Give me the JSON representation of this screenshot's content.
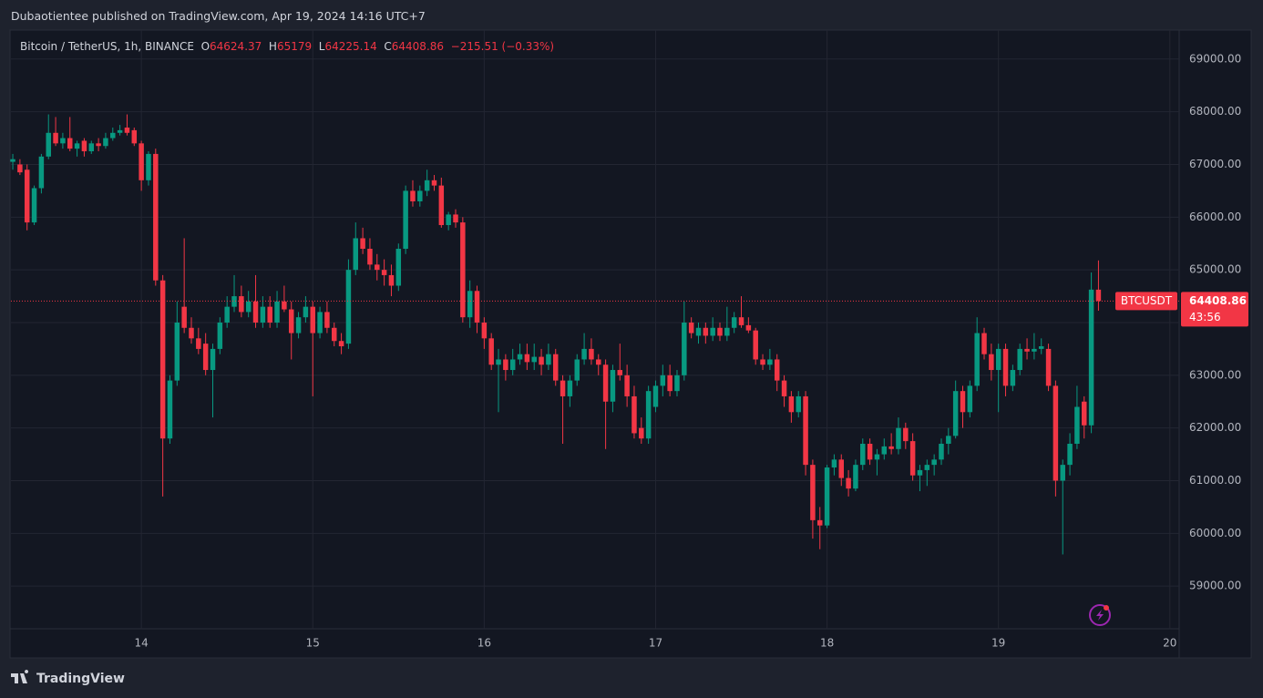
{
  "chart_data": {
    "type": "candlestick",
    "publisher": "Dubaotientee published on TradingView.com, Apr 19, 2024 14:16 UTC+7",
    "title": "Bitcoin / TetherUS, 1h, BINANCE",
    "ohlc_labels": [
      "O",
      "H",
      "L",
      "C"
    ],
    "change_text": "−215.51 (−0.33%)",
    "price_label": "BTCUSDT",
    "countdown": "43:56",
    "brand": "TradingView",
    "up_color": "#089981",
    "down_color": "#f23645",
    "grid": true,
    "ylim": [
      58190,
      69550
    ],
    "yticks": [
      {
        "value": 59000,
        "label": "59000.00"
      },
      {
        "value": 60000,
        "label": "60000.00"
      },
      {
        "value": 61000,
        "label": "61000.00"
      },
      {
        "value": 62000,
        "label": "62000.00"
      },
      {
        "value": 63000,
        "label": "63000.00"
      },
      {
        "value": 64000,
        "label": "64000.00"
      },
      {
        "value": 65000,
        "label": "65000.00"
      },
      {
        "value": 66000,
        "label": "66000.00"
      },
      {
        "value": 67000,
        "label": "67000.00"
      },
      {
        "value": 68000,
        "label": "68000.00"
      },
      {
        "value": 69000,
        "label": "69000.00"
      }
    ],
    "xlim": [
      -0.26,
      163.3
    ],
    "xticks": [
      {
        "value": 18,
        "label": "14"
      },
      {
        "value": 42,
        "label": "15"
      },
      {
        "value": 66,
        "label": "16"
      },
      {
        "value": 90,
        "label": "17"
      },
      {
        "value": 114,
        "label": "18"
      },
      {
        "value": 138,
        "label": "19"
      },
      {
        "value": 162,
        "label": "20"
      }
    ],
    "candles": [
      [
        67050,
        67200,
        66900,
        67100
      ],
      [
        67000,
        67100,
        66800,
        66850
      ],
      [
        66900,
        67000,
        65750,
        65900
      ],
      [
        65900,
        66600,
        65850,
        66550
      ],
      [
        66550,
        67200,
        66450,
        67150
      ],
      [
        67150,
        67950,
        67100,
        67600
      ],
      [
        67600,
        67900,
        67350,
        67400
      ],
      [
        67400,
        67600,
        67300,
        67500
      ],
      [
        67500,
        67900,
        67250,
        67300
      ],
      [
        67300,
        67450,
        67150,
        67400
      ],
      [
        67450,
        67500,
        67150,
        67250
      ],
      [
        67250,
        67450,
        67200,
        67400
      ],
      [
        67400,
        67500,
        67250,
        67350
      ],
      [
        67350,
        67600,
        67300,
        67500
      ],
      [
        67500,
        67700,
        67450,
        67600
      ],
      [
        67600,
        67750,
        67550,
        67650
      ],
      [
        67700,
        67950,
        67550,
        67600
      ],
      [
        67650,
        67700,
        67350,
        67400
      ],
      [
        67400,
        67450,
        66500,
        66700
      ],
      [
        66700,
        67250,
        66600,
        67200
      ],
      [
        67200,
        67300,
        64700,
        64800
      ],
      [
        64800,
        64900,
        60700,
        61800
      ],
      [
        61800,
        63000,
        61700,
        62900
      ],
      [
        62900,
        64400,
        62800,
        64000
      ],
      [
        64300,
        65600,
        63800,
        63900
      ],
      [
        63900,
        64100,
        63600,
        63700
      ],
      [
        63700,
        63900,
        63400,
        63500
      ],
      [
        63600,
        63800,
        63000,
        63100
      ],
      [
        63100,
        63600,
        62200,
        63500
      ],
      [
        63500,
        64100,
        63400,
        64000
      ],
      [
        64000,
        64500,
        63900,
        64300
      ],
      [
        64300,
        64900,
        64200,
        64500
      ],
      [
        64500,
        64700,
        64100,
        64200
      ],
      [
        64200,
        64600,
        64100,
        64400
      ],
      [
        64400,
        64900,
        63900,
        64000
      ],
      [
        64000,
        64500,
        63900,
        64300
      ],
      [
        64300,
        64500,
        63900,
        64000
      ],
      [
        64000,
        64600,
        63900,
        64400
      ],
      [
        64400,
        64700,
        64200,
        64250
      ],
      [
        64250,
        64400,
        63300,
        63800
      ],
      [
        63800,
        64200,
        63700,
        64100
      ],
      [
        64100,
        64500,
        64000,
        64300
      ],
      [
        64300,
        64400,
        62600,
        63800
      ],
      [
        63800,
        64300,
        63700,
        64200
      ],
      [
        64200,
        64400,
        63800,
        63900
      ],
      [
        63900,
        64000,
        63550,
        63650
      ],
      [
        63650,
        63800,
        63400,
        63550
      ],
      [
        63600,
        65200,
        63500,
        65000
      ],
      [
        65000,
        65900,
        64900,
        65600
      ],
      [
        65600,
        65800,
        65300,
        65400
      ],
      [
        65400,
        65600,
        65000,
        65100
      ],
      [
        65100,
        65300,
        64800,
        65000
      ],
      [
        65000,
        65200,
        64700,
        64900
      ],
      [
        64900,
        65100,
        64500,
        64700
      ],
      [
        64700,
        65500,
        64600,
        65400
      ],
      [
        65400,
        66600,
        65300,
        66500
      ],
      [
        66500,
        66700,
        66200,
        66300
      ],
      [
        66300,
        66600,
        66200,
        66500
      ],
      [
        66500,
        66900,
        66400,
        66700
      ],
      [
        66700,
        66800,
        66500,
        66600
      ],
      [
        66600,
        66750,
        65800,
        65850
      ],
      [
        65850,
        66100,
        65750,
        66050
      ],
      [
        66050,
        66150,
        65800,
        65900
      ],
      [
        65900,
        66000,
        64000,
        64100
      ],
      [
        64100,
        64800,
        63900,
        64600
      ],
      [
        64600,
        64700,
        63800,
        64000
      ],
      [
        64000,
        64100,
        63500,
        63700
      ],
      [
        63700,
        63800,
        63100,
        63200
      ],
      [
        63200,
        63500,
        62300,
        63300
      ],
      [
        63300,
        63400,
        62900,
        63100
      ],
      [
        63100,
        63500,
        63000,
        63300
      ],
      [
        63300,
        63600,
        63200,
        63400
      ],
      [
        63400,
        63600,
        63100,
        63250
      ],
      [
        63250,
        63600,
        63100,
        63350
      ],
      [
        63350,
        63500,
        63000,
        63200
      ],
      [
        63200,
        63600,
        63100,
        63400
      ],
      [
        63400,
        63500,
        62800,
        62900
      ],
      [
        62900,
        63000,
        61700,
        62600
      ],
      [
        62600,
        63000,
        62400,
        62900
      ],
      [
        62900,
        63400,
        62800,
        63300
      ],
      [
        63300,
        63800,
        63200,
        63500
      ],
      [
        63500,
        63700,
        63200,
        63300
      ],
      [
        63300,
        63400,
        63000,
        63200
      ],
      [
        63200,
        63300,
        61600,
        62500
      ],
      [
        62500,
        63200,
        62300,
        63100
      ],
      [
        63100,
        63600,
        62900,
        63000
      ],
      [
        63000,
        63200,
        62400,
        62600
      ],
      [
        62600,
        62800,
        61800,
        61900
      ],
      [
        62000,
        62200,
        61700,
        61800
      ],
      [
        61800,
        62800,
        61700,
        62700
      ],
      [
        62400,
        62900,
        62300,
        62800
      ],
      [
        62800,
        63200,
        62600,
        63000
      ],
      [
        63000,
        63200,
        62600,
        62700
      ],
      [
        62700,
        63100,
        62600,
        63000
      ],
      [
        63000,
        64400,
        62900,
        64000
      ],
      [
        64000,
        64100,
        63700,
        63800
      ],
      [
        63750,
        64000,
        63600,
        63900
      ],
      [
        63900,
        64000,
        63600,
        63750
      ],
      [
        63750,
        64100,
        63650,
        63900
      ],
      [
        63900,
        64000,
        63650,
        63750
      ],
      [
        63750,
        64300,
        63650,
        63900
      ],
      [
        63900,
        64200,
        63800,
        64100
      ],
      [
        64100,
        64500,
        63900,
        63950
      ],
      [
        63950,
        64100,
        63800,
        63850
      ],
      [
        63850,
        63900,
        63200,
        63300
      ],
      [
        63300,
        63400,
        63100,
        63200
      ],
      [
        63200,
        63500,
        63100,
        63300
      ],
      [
        63300,
        63400,
        62700,
        62900
      ],
      [
        62900,
        63000,
        62400,
        62600
      ],
      [
        62600,
        62700,
        62100,
        62300
      ],
      [
        62300,
        62700,
        62200,
        62600
      ],
      [
        62600,
        62700,
        61100,
        61300
      ],
      [
        61300,
        61400,
        59900,
        60250
      ],
      [
        60250,
        60500,
        59700,
        60150
      ],
      [
        60150,
        61300,
        60100,
        61250
      ],
      [
        61250,
        61500,
        61100,
        61400
      ],
      [
        61400,
        61500,
        60900,
        61050
      ],
      [
        61050,
        61200,
        60700,
        60850
      ],
      [
        60850,
        61400,
        60800,
        61300
      ],
      [
        61300,
        61800,
        61200,
        61700
      ],
      [
        61700,
        61800,
        61300,
        61400
      ],
      [
        61400,
        61600,
        61100,
        61500
      ],
      [
        61500,
        61800,
        61400,
        61650
      ],
      [
        61650,
        61900,
        61500,
        61600
      ],
      [
        61600,
        62200,
        61500,
        62000
      ],
      [
        62000,
        62100,
        61600,
        61750
      ],
      [
        61750,
        61900,
        61000,
        61100
      ],
      [
        61100,
        61300,
        60800,
        61200
      ],
      [
        61200,
        61400,
        60900,
        61300
      ],
      [
        61300,
        61500,
        61100,
        61400
      ],
      [
        61400,
        61800,
        61300,
        61700
      ],
      [
        61700,
        62000,
        61500,
        61850
      ],
      [
        61850,
        62900,
        61800,
        62700
      ],
      [
        62700,
        62800,
        62000,
        62300
      ],
      [
        62300,
        62900,
        62200,
        62800
      ],
      [
        62800,
        64100,
        62700,
        63800
      ],
      [
        63800,
        63900,
        63300,
        63400
      ],
      [
        63400,
        63600,
        62900,
        63100
      ],
      [
        63100,
        63600,
        62300,
        63500
      ],
      [
        63500,
        63600,
        62600,
        62800
      ],
      [
        62800,
        63200,
        62700,
        63100
      ],
      [
        63100,
        63600,
        63000,
        63500
      ],
      [
        63500,
        63700,
        63300,
        63450
      ],
      [
        63450,
        63800,
        63300,
        63500
      ],
      [
        63500,
        63700,
        63400,
        63550
      ],
      [
        63500,
        63600,
        62700,
        62800
      ],
      [
        62800,
        62900,
        60700,
        61000
      ],
      [
        61000,
        61400,
        59600,
        61300
      ],
      [
        61300,
        61900,
        61100,
        61700
      ],
      [
        61700,
        62800,
        61600,
        62400
      ],
      [
        62500,
        62600,
        61800,
        62050
      ],
      [
        62050,
        64950,
        61900,
        64625
      ],
      [
        64624.37,
        65179,
        64225.14,
        64408.86
      ]
    ]
  }
}
